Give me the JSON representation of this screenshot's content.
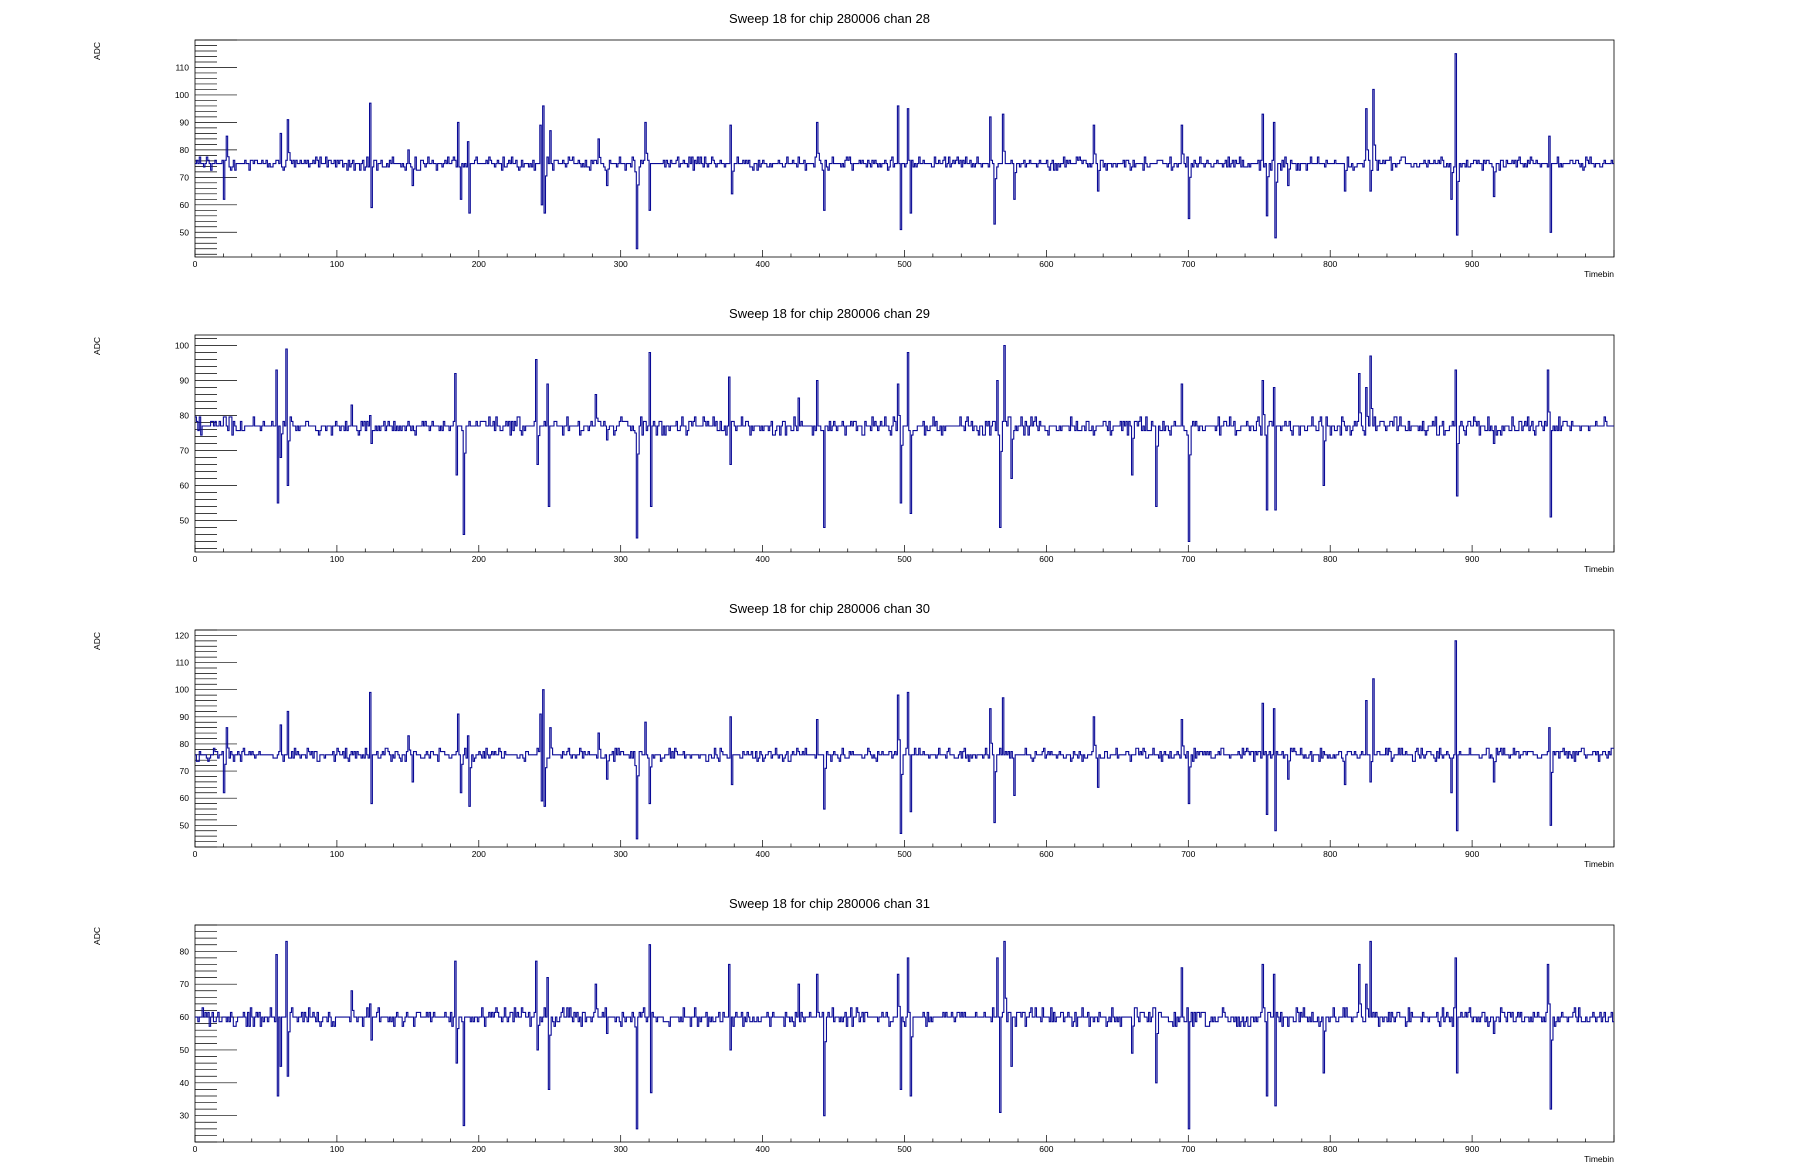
{
  "colors": {
    "trace": "#0a0a96",
    "frame": "#000000",
    "background": "#ffffff"
  },
  "chart_data": [
    {
      "type": "line",
      "title": "Sweep 18 for chip 280006 chan 28",
      "xlabel": "Timebin",
      "ylabel": "ADC",
      "xlim": [
        0,
        1000
      ],
      "ylim": [
        41,
        120
      ],
      "xticks": [
        0,
        100,
        200,
        300,
        400,
        500,
        600,
        700,
        800,
        900
      ],
      "yticks": [
        50,
        60,
        70,
        80,
        90,
        100,
        110
      ],
      "baseline": 75,
      "noise": 1.2,
      "spikes": [
        [
          20,
          62
        ],
        [
          22,
          85
        ],
        [
          60,
          86
        ],
        [
          65,
          91
        ],
        [
          123,
          97
        ],
        [
          124,
          59
        ],
        [
          150,
          80
        ],
        [
          153,
          67
        ],
        [
          185,
          90
        ],
        [
          187,
          62
        ],
        [
          192,
          83
        ],
        [
          193,
          57
        ],
        [
          243,
          89
        ],
        [
          244,
          60
        ],
        [
          245,
          96
        ],
        [
          246,
          57
        ],
        [
          250,
          87
        ],
        [
          284,
          84
        ],
        [
          290,
          67
        ],
        [
          310,
          72
        ],
        [
          311,
          44
        ],
        [
          317,
          90
        ],
        [
          320,
          58
        ],
        [
          377,
          89
        ],
        [
          378,
          64
        ],
        [
          438,
          90
        ],
        [
          443,
          58
        ],
        [
          495,
          96
        ],
        [
          497,
          51
        ],
        [
          502,
          95
        ],
        [
          504,
          57
        ],
        [
          560,
          92
        ],
        [
          563,
          53
        ],
        [
          569,
          93
        ],
        [
          577,
          62
        ],
        [
          633,
          89
        ],
        [
          636,
          65
        ],
        [
          695,
          89
        ],
        [
          700,
          55
        ],
        [
          752,
          93
        ],
        [
          755,
          56
        ],
        [
          760,
          90
        ],
        [
          761,
          48
        ],
        [
          770,
          67
        ],
        [
          810,
          65
        ],
        [
          825,
          95
        ],
        [
          828,
          65
        ],
        [
          830,
          102
        ],
        [
          885,
          62
        ],
        [
          888,
          115
        ],
        [
          889,
          49
        ],
        [
          915,
          63
        ],
        [
          954,
          85
        ],
        [
          955,
          50
        ]
      ]
    },
    {
      "type": "line",
      "title": "Sweep 18 for chip 280006 chan 29",
      "xlabel": "Timebin",
      "ylabel": "ADC",
      "xlim": [
        0,
        1000
      ],
      "ylim": [
        41,
        103
      ],
      "xticks": [
        0,
        100,
        200,
        300,
        400,
        500,
        600,
        700,
        800,
        900
      ],
      "yticks": [
        50,
        60,
        70,
        80,
        90,
        100
      ],
      "baseline": 77,
      "noise": 1.3,
      "spikes": [
        [
          57,
          93
        ],
        [
          58,
          55
        ],
        [
          60,
          68
        ],
        [
          64,
          99
        ],
        [
          65,
          60
        ],
        [
          110,
          83
        ],
        [
          123,
          80
        ],
        [
          124,
          72
        ],
        [
          183,
          92
        ],
        [
          184,
          63
        ],
        [
          189,
          46
        ],
        [
          240,
          96
        ],
        [
          241,
          66
        ],
        [
          248,
          89
        ],
        [
          249,
          54
        ],
        [
          282,
          86
        ],
        [
          290,
          73
        ],
        [
          310,
          75
        ],
        [
          311,
          45
        ],
        [
          320,
          98
        ],
        [
          321,
          54
        ],
        [
          376,
          91
        ],
        [
          377,
          66
        ],
        [
          425,
          85
        ],
        [
          438,
          90
        ],
        [
          443,
          48
        ],
        [
          495,
          89
        ],
        [
          497,
          55
        ],
        [
          502,
          98
        ],
        [
          504,
          52
        ],
        [
          565,
          90
        ],
        [
          567,
          48
        ],
        [
          570,
          100
        ],
        [
          575,
          62
        ],
        [
          660,
          63
        ],
        [
          677,
          54
        ],
        [
          695,
          89
        ],
        [
          700,
          44
        ],
        [
          752,
          90
        ],
        [
          755,
          53
        ],
        [
          760,
          88
        ],
        [
          761,
          53
        ],
        [
          795,
          60
        ],
        [
          820,
          92
        ],
        [
          825,
          88
        ],
        [
          828,
          97
        ],
        [
          888,
          93
        ],
        [
          889,
          57
        ],
        [
          915,
          72
        ],
        [
          953,
          93
        ],
        [
          955,
          51
        ]
      ]
    },
    {
      "type": "line",
      "title": "Sweep 18 for chip 280006 chan 30",
      "xlabel": "Timebin",
      "ylabel": "ADC",
      "xlim": [
        0,
        1000
      ],
      "ylim": [
        42,
        122
      ],
      "xticks": [
        0,
        100,
        200,
        300,
        400,
        500,
        600,
        700,
        800,
        900
      ],
      "yticks": [
        50,
        60,
        70,
        80,
        90,
        100,
        110,
        120
      ],
      "baseline": 76,
      "noise": 1.2,
      "spikes": [
        [
          20,
          62
        ],
        [
          22,
          86
        ],
        [
          60,
          87
        ],
        [
          65,
          92
        ],
        [
          123,
          99
        ],
        [
          124,
          58
        ],
        [
          150,
          83
        ],
        [
          153,
          66
        ],
        [
          185,
          91
        ],
        [
          187,
          62
        ],
        [
          192,
          83
        ],
        [
          193,
          57
        ],
        [
          243,
          91
        ],
        [
          244,
          59
        ],
        [
          245,
          100
        ],
        [
          246,
          57
        ],
        [
          250,
          86
        ],
        [
          284,
          84
        ],
        [
          290,
          67
        ],
        [
          310,
          72
        ],
        [
          311,
          45
        ],
        [
          317,
          88
        ],
        [
          320,
          58
        ],
        [
          377,
          90
        ],
        [
          378,
          65
        ],
        [
          438,
          89
        ],
        [
          443,
          56
        ],
        [
          495,
          98
        ],
        [
          497,
          47
        ],
        [
          502,
          99
        ],
        [
          504,
          55
        ],
        [
          560,
          93
        ],
        [
          563,
          51
        ],
        [
          569,
          97
        ],
        [
          577,
          61
        ],
        [
          633,
          90
        ],
        [
          636,
          64
        ],
        [
          695,
          89
        ],
        [
          700,
          58
        ],
        [
          752,
          95
        ],
        [
          755,
          54
        ],
        [
          760,
          93
        ],
        [
          761,
          48
        ],
        [
          770,
          67
        ],
        [
          810,
          65
        ],
        [
          825,
          96
        ],
        [
          828,
          66
        ],
        [
          830,
          104
        ],
        [
          885,
          62
        ],
        [
          888,
          118
        ],
        [
          889,
          48
        ],
        [
          915,
          66
        ],
        [
          954,
          86
        ],
        [
          955,
          50
        ]
      ]
    },
    {
      "type": "line",
      "title": "Sweep 18 for chip 280006 chan 31",
      "xlabel": "Timebin",
      "ylabel": "ADC",
      "xlim": [
        0,
        1000
      ],
      "ylim": [
        22,
        88
      ],
      "xticks": [
        0,
        100,
        200,
        300,
        400,
        500,
        600,
        700,
        800,
        900
      ],
      "yticks": [
        30,
        40,
        50,
        60,
        70,
        80
      ],
      "baseline": 60,
      "noise": 1.4,
      "spikes": [
        [
          57,
          79
        ],
        [
          58,
          36
        ],
        [
          60,
          45
        ],
        [
          64,
          83
        ],
        [
          65,
          42
        ],
        [
          110,
          68
        ],
        [
          123,
          64
        ],
        [
          124,
          53
        ],
        [
          183,
          77
        ],
        [
          184,
          46
        ],
        [
          189,
          27
        ],
        [
          240,
          77
        ],
        [
          241,
          50
        ],
        [
          248,
          72
        ],
        [
          249,
          38
        ],
        [
          282,
          70
        ],
        [
          290,
          55
        ],
        [
          310,
          57
        ],
        [
          311,
          26
        ],
        [
          320,
          82
        ],
        [
          321,
          37
        ],
        [
          376,
          76
        ],
        [
          377,
          50
        ],
        [
          425,
          70
        ],
        [
          438,
          73
        ],
        [
          443,
          30
        ],
        [
          495,
          73
        ],
        [
          497,
          38
        ],
        [
          502,
          78
        ],
        [
          504,
          36
        ],
        [
          565,
          78
        ],
        [
          567,
          31
        ],
        [
          570,
          83
        ],
        [
          575,
          45
        ],
        [
          660,
          49
        ],
        [
          677,
          40
        ],
        [
          695,
          75
        ],
        [
          700,
          26
        ],
        [
          752,
          76
        ],
        [
          755,
          36
        ],
        [
          760,
          73
        ],
        [
          761,
          33
        ],
        [
          795,
          43
        ],
        [
          820,
          76
        ],
        [
          825,
          70
        ],
        [
          828,
          83
        ],
        [
          888,
          78
        ],
        [
          889,
          43
        ],
        [
          915,
          55
        ],
        [
          953,
          76
        ],
        [
          955,
          32
        ]
      ]
    }
  ]
}
